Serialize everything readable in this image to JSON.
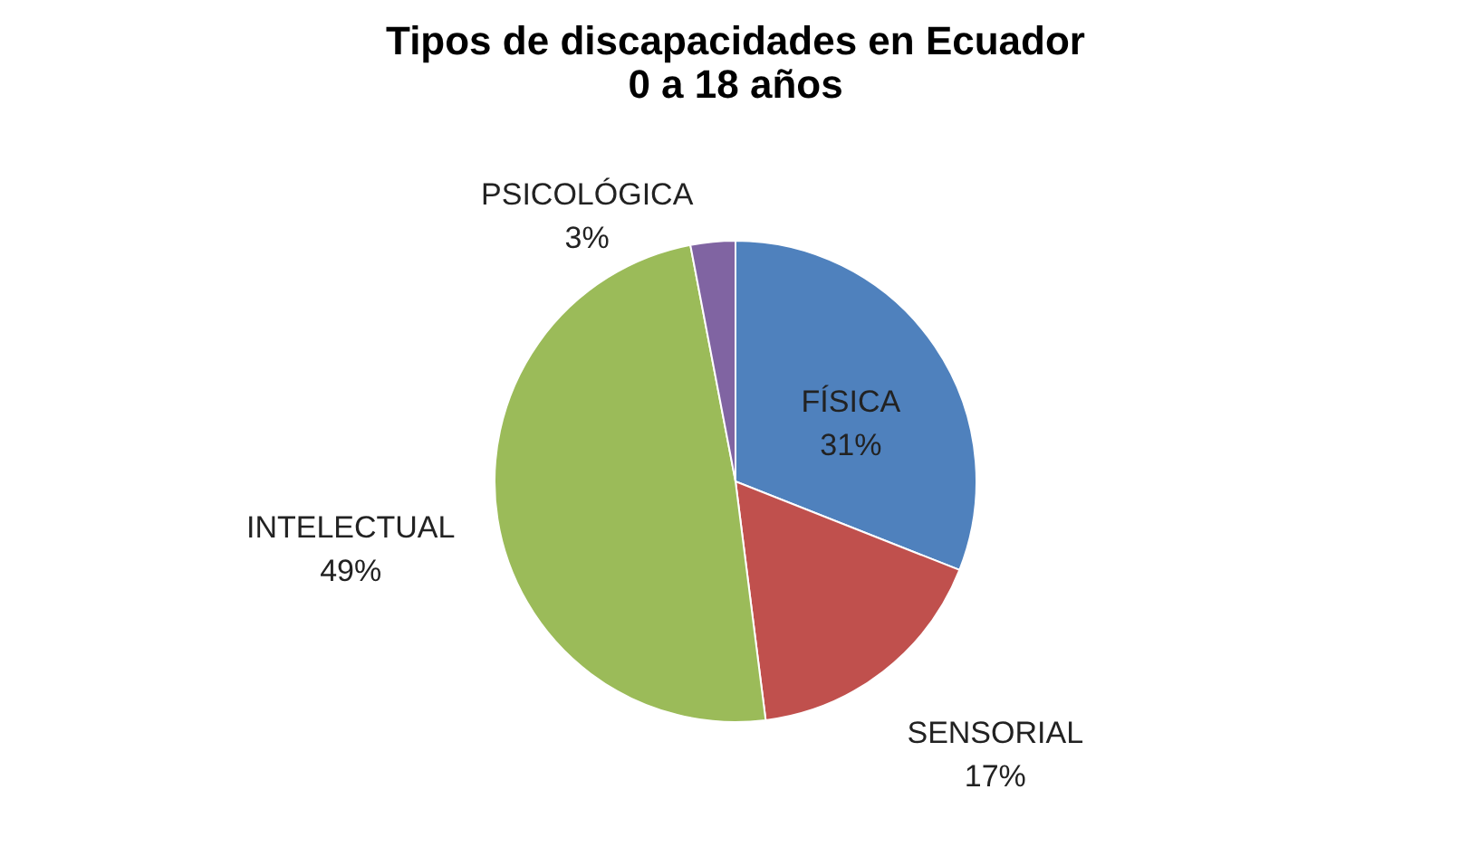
{
  "chart_data": {
    "type": "pie",
    "title": [
      "Tipos de discapacidades en Ecuador",
      "0 a 18 años"
    ],
    "categories": [
      "FÍSICA",
      "SENSORIAL",
      "INTELECTUAL",
      "PSICOLÓGICA"
    ],
    "values": [
      31,
      17,
      49,
      3
    ],
    "value_labels": [
      "31%",
      "17%",
      "49%",
      "3%"
    ],
    "colors": [
      "#4f81bd",
      "#c0504d",
      "#9bbb59",
      "#8064a2"
    ],
    "legend": false
  }
}
